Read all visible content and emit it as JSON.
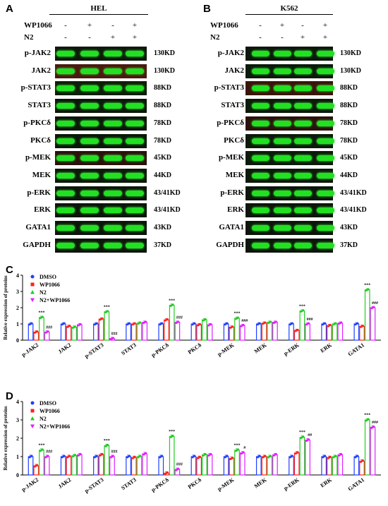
{
  "panels": {
    "A": {
      "letter": "A",
      "cell_line": "HEL",
      "treatments": [
        {
          "name": "WP1066",
          "signs": [
            "-",
            "+",
            "-",
            "+"
          ]
        },
        {
          "name": "N2",
          "signs": [
            "-",
            "-",
            "+",
            "+"
          ]
        }
      ],
      "rows": [
        {
          "protein": "p-JAK2",
          "kd": "130KD",
          "tint": "#0d1a0a"
        },
        {
          "protein": "JAK2",
          "kd": "130KD",
          "tint": "#4a1a0e"
        },
        {
          "protein": "p-STAT3",
          "kd": "88KD",
          "tint": "#0f1e08"
        },
        {
          "protein": "STAT3",
          "kd": "88KD",
          "tint": "#0b190a"
        },
        {
          "protein": "p-PKCδ",
          "kd": "78KD",
          "tint": "#0b170a"
        },
        {
          "protein": "PKCδ",
          "kd": "78KD",
          "tint": "#0b170a"
        },
        {
          "protein": "p-MEK",
          "kd": "45KD",
          "tint": "#2a120b"
        },
        {
          "protein": "MEK",
          "kd": "44KD",
          "tint": "#0c1a0a"
        },
        {
          "protein": "p-ERK",
          "kd": "43/41KD",
          "tint": "#0c160a"
        },
        {
          "protein": "ERK",
          "kd": "43/41KD",
          "tint": "#0c160a"
        },
        {
          "protein": "GATA1",
          "kd": "43KD",
          "tint": "#0c160a"
        },
        {
          "protein": "GAPDH",
          "kd": "37KD",
          "tint": "#0c160a"
        }
      ]
    },
    "B": {
      "letter": "B",
      "cell_line": "K562",
      "treatments": [
        {
          "name": "WP1066",
          "signs": [
            "-",
            "+",
            "-",
            "+"
          ]
        },
        {
          "name": "N2",
          "signs": [
            "-",
            "-",
            "+",
            "+"
          ]
        }
      ],
      "rows": [
        {
          "protein": "p-JAK2",
          "kd": "130KD",
          "tint": "#0c180a"
        },
        {
          "protein": "JAK2",
          "kd": "130KD",
          "tint": "#0c1a0a"
        },
        {
          "protein": "p-STAT3",
          "kd": "88KD",
          "tint": "#3a140c"
        },
        {
          "protein": "STAT3",
          "kd": "88KD",
          "tint": "#0c1a0a"
        },
        {
          "protein": "p-PKCδ",
          "kd": "78KD",
          "tint": "#2a120b"
        },
        {
          "protein": "PKCδ",
          "kd": "78KD",
          "tint": "#0c1a0a"
        },
        {
          "protein": "p-MEK",
          "kd": "45KD",
          "tint": "#0c1a0a"
        },
        {
          "protein": "MEK",
          "kd": "44KD",
          "tint": "#0c1a0a"
        },
        {
          "protein": "p-ERK",
          "kd": "43/41KD",
          "tint": "#0c160a"
        },
        {
          "protein": "ERK",
          "kd": "43/41KD",
          "tint": "#0c160a"
        },
        {
          "protein": "GATA1",
          "kd": "43KD",
          "tint": "#0c160a"
        },
        {
          "protein": "GAPDH",
          "kd": "37KD",
          "tint": "#0c160a"
        }
      ]
    }
  },
  "chart_data": [
    {
      "panel_label": "C",
      "type": "bar",
      "ylabel": "Relative expression of proteins",
      "xlabel": "",
      "ylim": [
        0,
        4
      ],
      "yticks": [
        0,
        1,
        2,
        3,
        4
      ],
      "categories": [
        "p-JAK2",
        "JAK2",
        "p-STAT3",
        "STAT3",
        "p-PKCδ",
        "PKCδ",
        "p-MEK",
        "MEK",
        "p-ERK",
        "ERK",
        "GATA1"
      ],
      "legend_position": "top-left",
      "series": [
        {
          "name": "DMSO",
          "color": "#1f3fff",
          "marker": "circle",
          "values": [
            1.0,
            1.0,
            1.0,
            1.0,
            1.0,
            1.0,
            1.0,
            1.0,
            1.0,
            1.0,
            1.0
          ]
        },
        {
          "name": "WP1066",
          "color": "#ff2020",
          "marker": "square",
          "values": [
            0.5,
            0.85,
            1.3,
            1.0,
            1.25,
            0.95,
            0.8,
            1.05,
            0.6,
            0.9,
            0.85
          ]
        },
        {
          "name": "N2",
          "color": "#22cc22",
          "marker": "triangle-up",
          "values": [
            1.4,
            0.8,
            1.75,
            1.05,
            2.15,
            1.25,
            1.35,
            1.1,
            1.8,
            1.0,
            3.1
          ]
        },
        {
          "name": "N2+WP1066",
          "color": "#e020ff",
          "marker": "triangle-down",
          "values": [
            0.5,
            0.95,
            0.1,
            1.1,
            1.1,
            0.95,
            0.9,
            1.1,
            1.0,
            1.05,
            2.0
          ]
        }
      ],
      "annotations": [
        {
          "category": "p-JAK2",
          "series": "N2",
          "text": "***"
        },
        {
          "category": "p-JAK2",
          "series": "N2+WP1066",
          "text": "###"
        },
        {
          "category": "p-STAT3",
          "series": "N2",
          "text": "***"
        },
        {
          "category": "p-STAT3",
          "series": "N2+WP1066",
          "text": "###"
        },
        {
          "category": "p-PKCδ",
          "series": "N2",
          "text": "***"
        },
        {
          "category": "p-PKCδ",
          "series": "N2+WP1066",
          "text": "###"
        },
        {
          "category": "p-MEK",
          "series": "N2",
          "text": "***"
        },
        {
          "category": "p-MEK",
          "series": "N2+WP1066",
          "text": "###"
        },
        {
          "category": "p-ERK",
          "series": "N2",
          "text": "***"
        },
        {
          "category": "p-ERK",
          "series": "N2+WP1066",
          "text": "###"
        },
        {
          "category": "GATA1",
          "series": "N2",
          "text": "***"
        },
        {
          "category": "GATA1",
          "series": "N2+WP1066",
          "text": "###"
        }
      ]
    },
    {
      "panel_label": "D",
      "type": "bar",
      "ylabel": "Relative expression of proteins",
      "xlabel": "",
      "ylim": [
        0,
        4
      ],
      "yticks": [
        0,
        1,
        2,
        3,
        4
      ],
      "categories": [
        "p-JAK2",
        "JAK2",
        "p-STAT3",
        "STAT3",
        "p-PKCδ",
        "PKCδ",
        "p-MEK",
        "MEK",
        "p-ERK",
        "ERK",
        "GATA1"
      ],
      "legend_position": "top-left",
      "series": [
        {
          "name": "DMSO",
          "color": "#1f3fff",
          "marker": "circle",
          "values": [
            1.0,
            1.0,
            1.0,
            1.0,
            1.0,
            1.0,
            1.0,
            1.0,
            1.0,
            1.0,
            1.0
          ]
        },
        {
          "name": "WP1066",
          "color": "#ff2020",
          "marker": "square",
          "values": [
            0.5,
            1.0,
            1.1,
            0.95,
            0.1,
            0.95,
            0.9,
            1.0,
            1.2,
            0.95,
            0.75
          ]
        },
        {
          "name": "N2",
          "color": "#22cc22",
          "marker": "triangle-up",
          "values": [
            1.35,
            1.05,
            1.6,
            1.0,
            2.1,
            1.1,
            1.35,
            1.0,
            2.05,
            1.0,
            3.0
          ]
        },
        {
          "name": "N2+WP1066",
          "color": "#e020ff",
          "marker": "triangle-down",
          "values": [
            1.0,
            1.1,
            1.0,
            1.15,
            0.3,
            1.1,
            1.2,
            1.1,
            1.9,
            1.1,
            2.6
          ]
        }
      ],
      "annotations": [
        {
          "category": "p-JAK2",
          "series": "N2",
          "text": "***"
        },
        {
          "category": "p-JAK2",
          "series": "N2+WP1066",
          "text": "###"
        },
        {
          "category": "p-STAT3",
          "series": "N2",
          "text": "***"
        },
        {
          "category": "p-STAT3",
          "series": "N2+WP1066",
          "text": "###"
        },
        {
          "category": "p-PKCδ",
          "series": "N2",
          "text": "***"
        },
        {
          "category": "p-PKCδ",
          "series": "N2+WP1066",
          "text": "###"
        },
        {
          "category": "p-MEK",
          "series": "N2",
          "text": "***"
        },
        {
          "category": "p-MEK",
          "series": "N2+WP1066",
          "text": "#"
        },
        {
          "category": "p-ERK",
          "series": "N2",
          "text": "***"
        },
        {
          "category": "p-ERK",
          "series": "N2+WP1066",
          "text": "##"
        },
        {
          "category": "GATA1",
          "series": "N2",
          "text": "***"
        },
        {
          "category": "GATA1",
          "series": "N2+WP1066",
          "text": "###"
        }
      ]
    }
  ]
}
